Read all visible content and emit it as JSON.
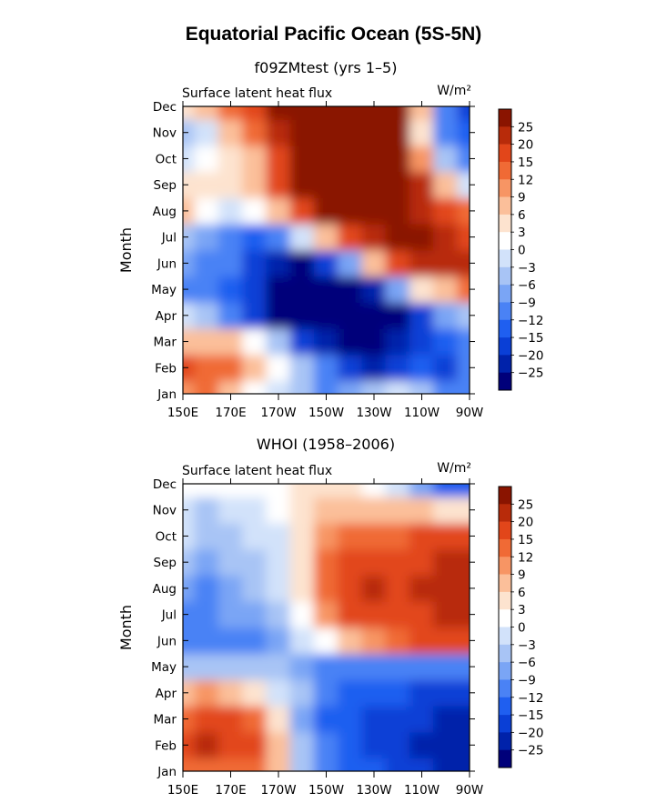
{
  "figure_title": "Equatorial Pacific Ocean (5S-5N)",
  "colors": {
    "palette": [
      "#00007a",
      "#0022aa",
      "#0a3fd6",
      "#1f5ff0",
      "#4a82f5",
      "#7aa5f5",
      "#a8c4f5",
      "#d2e2fa",
      "#ffffff",
      "#fde3cf",
      "#fbbf9a",
      "#f79564",
      "#f06a35",
      "#e2461a",
      "#b82b0a",
      "#8a1400"
    ],
    "missing": "#ffffff"
  },
  "colorbar": {
    "levels": [
      "25",
      "20",
      "15",
      "12",
      "9",
      "6",
      "3",
      "0",
      "−3",
      "−6",
      "−9",
      "−12",
      "−15",
      "−20",
      "−25"
    ]
  },
  "chart_data": [
    {
      "type": "heatmap",
      "title": "f09ZMtest (yrs 1–5)",
      "subtitle": "Surface latent heat flux",
      "units": "W/m²",
      "xlabel": "",
      "ylabel": "Month",
      "x_tick_labels": [
        "150E",
        "170E",
        "170W",
        "150W",
        "130W",
        "110W",
        "90W"
      ],
      "x": [
        "150E",
        "160E",
        "170E",
        "180",
        "170W",
        "160W",
        "150W",
        "140W",
        "130W",
        "120W",
        "110W",
        "100W",
        "90W"
      ],
      "y": [
        "Jan",
        "Feb",
        "Mar",
        "Apr",
        "May",
        "Jun",
        "Jul",
        "Aug",
        "Sep",
        "Oct",
        "Nov",
        "Dec"
      ],
      "values": [
        [
          10,
          12,
          8,
          2,
          -2,
          -6,
          -10,
          -8,
          -4,
          -2,
          -6,
          -10,
          -12
        ],
        [
          15,
          14,
          12,
          6,
          2,
          -4,
          -12,
          -20,
          -22,
          -18,
          -14,
          -16,
          -12
        ],
        [
          6,
          8,
          6,
          2,
          -6,
          -18,
          -25,
          -28,
          -26,
          -22,
          -18,
          -14,
          -10
        ],
        [
          -3,
          -6,
          -12,
          -18,
          -26,
          -30,
          -30,
          -30,
          -30,
          -26,
          -16,
          -8,
          -6
        ],
        [
          -12,
          -12,
          -15,
          -20,
          -26,
          -30,
          -30,
          -28,
          -22,
          -8,
          3,
          6,
          12
        ],
        [
          -8,
          -10,
          -12,
          -18,
          -24,
          -26,
          -20,
          -8,
          6,
          16,
          20,
          22,
          20
        ],
        [
          -6,
          -8,
          -12,
          -14,
          -10,
          -2,
          8,
          18,
          24,
          28,
          26,
          20,
          16
        ],
        [
          6,
          2,
          -3,
          0,
          6,
          18,
          26,
          28,
          28,
          28,
          24,
          18,
          12
        ],
        [
          3,
          3,
          4,
          6,
          15,
          26,
          28,
          28,
          28,
          28,
          20,
          6,
          -3
        ],
        [
          -3,
          0,
          3,
          8,
          16,
          28,
          28,
          28,
          28,
          26,
          9,
          -6,
          -12
        ],
        [
          -6,
          -3,
          6,
          14,
          24,
          30,
          30,
          30,
          30,
          28,
          3,
          -12,
          -15
        ],
        [
          3,
          6,
          12,
          18,
          26,
          30,
          30,
          30,
          30,
          28,
          6,
          -12,
          -18
        ]
      ]
    },
    {
      "type": "heatmap",
      "title": "WHOI (1958–2006)",
      "subtitle": "Surface latent heat flux",
      "units": "W/m²",
      "xlabel": "",
      "ylabel": "Month",
      "x_tick_labels": [
        "150E",
        "170E",
        "170W",
        "150W",
        "130W",
        "110W",
        "90W"
      ],
      "x": [
        "150E",
        "160E",
        "170E",
        "180",
        "170W",
        "160W",
        "150W",
        "140W",
        "130W",
        "120W",
        "110W",
        "100W",
        "90W"
      ],
      "y": [
        "Jan",
        "Feb",
        "Mar",
        "Apr",
        "May",
        "Jun",
        "Jul",
        "Aug",
        "Sep",
        "Oct",
        "Nov",
        "Dec"
      ],
      "values": [
        [
          12,
          14,
          12,
          12,
          6,
          -6,
          -12,
          -15,
          -15,
          -18,
          -20,
          -22,
          -22
        ],
        [
          15,
          20,
          18,
          15,
          6,
          -6,
          -12,
          -15,
          -18,
          -20,
          -22,
          -25,
          -25
        ],
        [
          12,
          15,
          15,
          12,
          3,
          -9,
          -15,
          -15,
          -18,
          -18,
          -20,
          -22,
          -22
        ],
        [
          6,
          9,
          6,
          3,
          -3,
          -6,
          -12,
          -15,
          -15,
          -15,
          -18,
          -18,
          -20
        ],
        [
          -6,
          -6,
          -6,
          -6,
          -6,
          -9,
          -12,
          -12,
          -12,
          -12,
          -12,
          -12,
          -12
        ],
        [
          -12,
          -12,
          -12,
          -12,
          -9,
          -3,
          0,
          6,
          9,
          12,
          15,
          15,
          15
        ],
        [
          -12,
          -12,
          -9,
          -9,
          -6,
          0,
          9,
          15,
          15,
          15,
          15,
          20,
          20
        ],
        [
          -9,
          -12,
          -9,
          -6,
          -3,
          3,
          12,
          15,
          20,
          15,
          20,
          20,
          20
        ],
        [
          -6,
          -9,
          -6,
          -6,
          -3,
          3,
          12,
          15,
          15,
          15,
          15,
          20,
          22
        ],
        [
          -3,
          -6,
          -6,
          -3,
          -3,
          3,
          9,
          12,
          12,
          12,
          15,
          15,
          15
        ],
        [
          -3,
          -6,
          -3,
          -3,
          0,
          3,
          6,
          6,
          6,
          6,
          6,
          3,
          3
        ],
        [
          0,
          0,
          0,
          0,
          0,
          3,
          3,
          3,
          0,
          -3,
          -9,
          -15,
          -15
        ]
      ]
    }
  ]
}
